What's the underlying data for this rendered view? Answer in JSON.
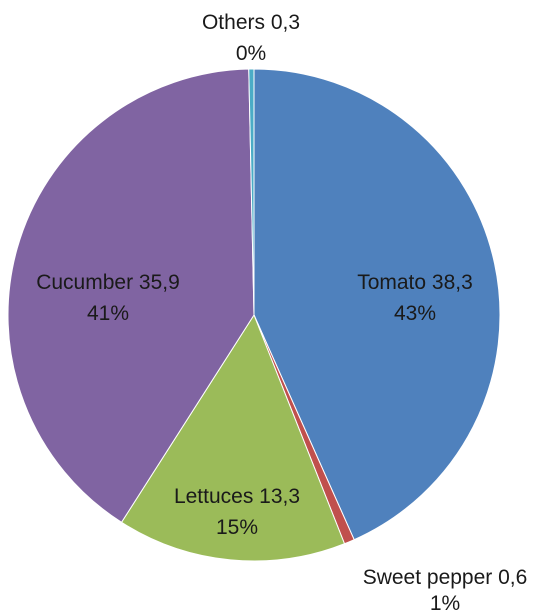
{
  "chart_data": {
    "type": "pie",
    "title": "",
    "slices": [
      {
        "name": "Tomato",
        "value": 38.3,
        "value_label": "38,3",
        "percent_label": "43%",
        "color": "#4f81bd"
      },
      {
        "name": "Sweet pepper",
        "value": 0.6,
        "value_label": "0,6",
        "percent_label": "1%",
        "color": "#c0504d"
      },
      {
        "name": "Lettuces",
        "value": 13.3,
        "value_label": "13,3",
        "percent_label": "15%",
        "color": "#9bbb59"
      },
      {
        "name": "Cucumber",
        "value": 35.9,
        "value_label": "35,9",
        "percent_label": "41%",
        "color": "#8064a2"
      },
      {
        "name": "Others",
        "value": 0.3,
        "value_label": "0,3",
        "percent_label": "0%",
        "color": "#4bacc6"
      }
    ],
    "start_angle_deg": 0,
    "direction": "clockwise",
    "legend": "none"
  }
}
